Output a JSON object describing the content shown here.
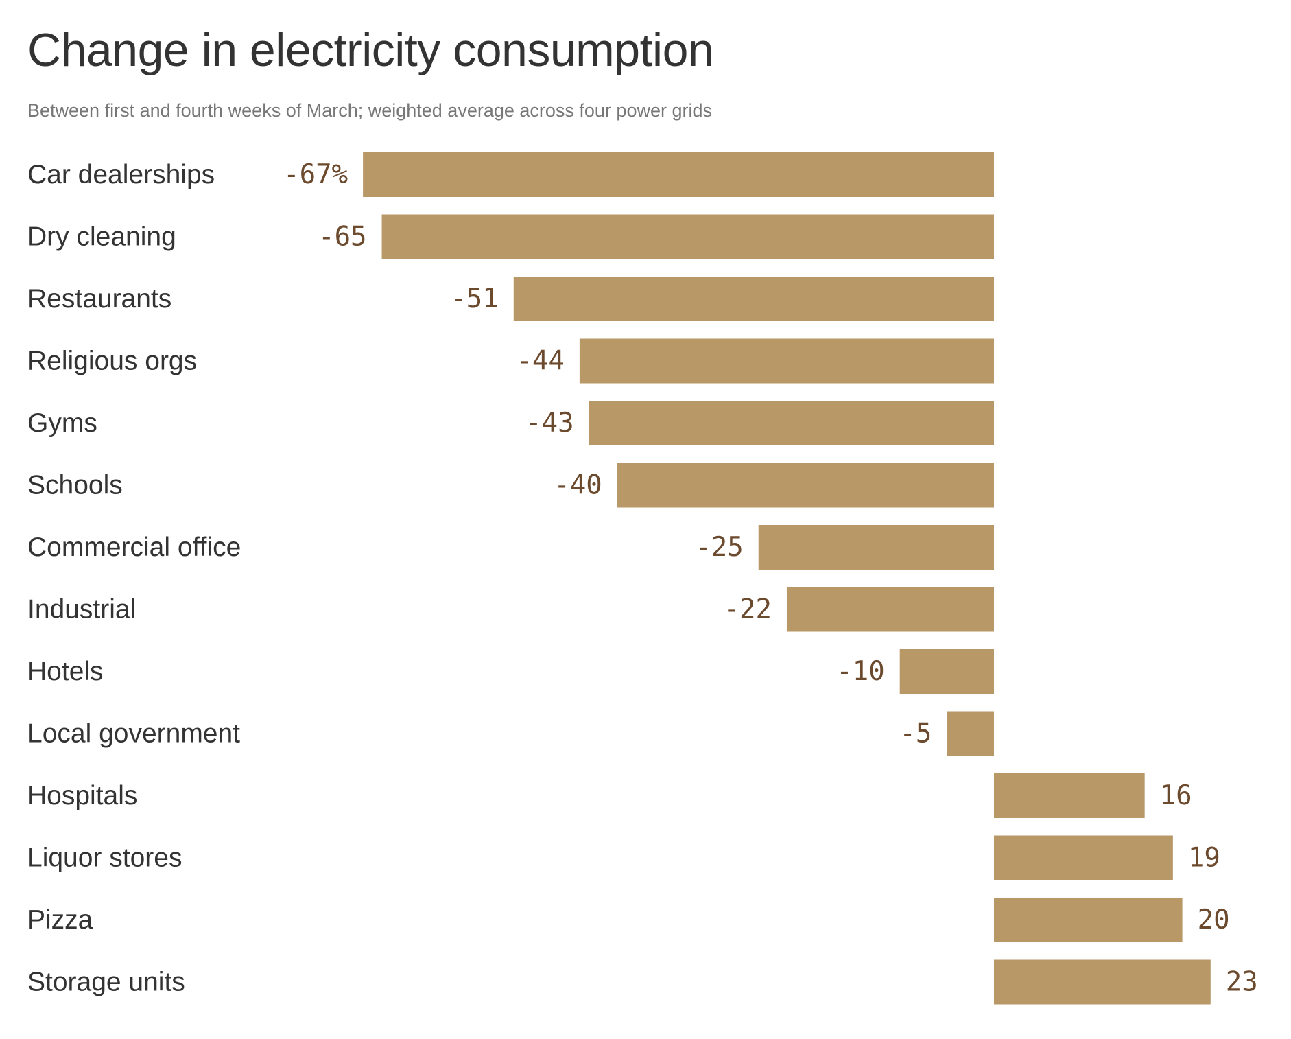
{
  "header": {
    "title": "Change in electricity consumption",
    "subtitle": "Between first and fourth weeks of March; weighted average across four power grids"
  },
  "colors": {
    "bar": "#b99868",
    "value_label": "#6b4a2e",
    "category_label": "#333333"
  },
  "chart_data": {
    "type": "bar",
    "orientation": "horizontal",
    "categories": [
      "Car dealerships",
      "Dry cleaning",
      "Restaurants",
      "Religious orgs",
      "Gyms",
      "Schools",
      "Commercial office",
      "Industrial",
      "Hotels",
      "Local government",
      "Hospitals",
      "Liquor stores",
      "Pizza",
      "Storage units"
    ],
    "values": [
      -67,
      -65,
      -51,
      -44,
      -43,
      -40,
      -25,
      -22,
      -10,
      -5,
      16,
      19,
      20,
      23
    ],
    "value_labels": [
      "-67%",
      "-65",
      "-51",
      "-44",
      "-43",
      "-40",
      "-25",
      "-22",
      "-10",
      "-5",
      "16",
      "19",
      "20",
      "23"
    ],
    "unit": "%",
    "xlim": [
      -67,
      23
    ],
    "grid": false,
    "legend": "none"
  }
}
